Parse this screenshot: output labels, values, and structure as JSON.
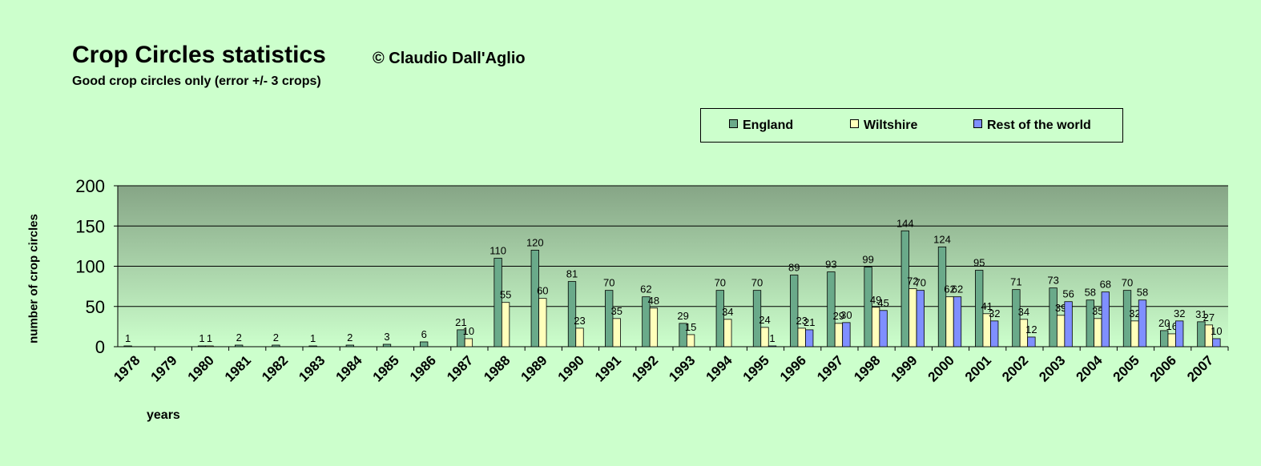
{
  "chart_data": {
    "type": "bar",
    "title": "Crop Circles statistics",
    "credit": "© Claudio Dall'Aglio",
    "subtitle": "Good crop circles only (error +/- 3 crops)",
    "xlabel": "years",
    "ylabel": "number of crop circles",
    "ylim": [
      0,
      200
    ],
    "yticks": [
      0,
      50,
      100,
      150,
      200
    ],
    "grid": true,
    "legend_position": "top-right",
    "categories": [
      "1978",
      "1979",
      "1980",
      "1981",
      "1982",
      "1983",
      "1984",
      "1985",
      "1986",
      "1987",
      "1988",
      "1989",
      "1990",
      "1991",
      "1992",
      "1993",
      "1994",
      "1995",
      "1996",
      "1997",
      "1998",
      "1999",
      "2000",
      "2001",
      "2002",
      "2003",
      "2004",
      "2005",
      "2006",
      "2007"
    ],
    "series": [
      {
        "name": "England",
        "color": "#6aaa8a",
        "values": [
          1,
          null,
          1,
          2,
          2,
          1,
          2,
          3,
          6,
          21,
          110,
          120,
          81,
          70,
          62,
          29,
          70,
          70,
          89,
          93,
          99,
          144,
          124,
          95,
          71,
          73,
          58,
          70,
          20,
          31
        ],
        "labels": [
          "1",
          "",
          "1",
          "2",
          "2",
          "1",
          "2",
          "3",
          "6",
          "21",
          "110",
          "120",
          "81",
          "70",
          "62",
          "29",
          "70",
          "70",
          "89",
          "93",
          "99",
          "144",
          "124",
          "95",
          "71",
          "73",
          "58",
          "70",
          "20",
          "31"
        ]
      },
      {
        "name": "Wiltshire",
        "color": "#ffffbb",
        "values": [
          null,
          null,
          1,
          null,
          null,
          null,
          null,
          null,
          null,
          10,
          55,
          60,
          23,
          35,
          48,
          15,
          34,
          24,
          23,
          29,
          49,
          72,
          62,
          41,
          34,
          39,
          35,
          32,
          16,
          27
        ],
        "labels": [
          "",
          "",
          "1",
          "",
          "",
          "",
          "",
          "",
          "",
          "10",
          "55",
          "60",
          "23",
          "35",
          "48",
          "15",
          "34",
          "24",
          "23",
          "29",
          "49",
          "72",
          "62",
          "41",
          "34",
          "39",
          "35",
          "32",
          "16",
          "27"
        ]
      },
      {
        "name": "Rest of the world",
        "color": "#7f8fff",
        "values": [
          null,
          null,
          null,
          null,
          null,
          null,
          null,
          null,
          null,
          null,
          null,
          null,
          null,
          null,
          null,
          null,
          null,
          1,
          21,
          30,
          45,
          70,
          62,
          32,
          12,
          56,
          68,
          58,
          32,
          10
        ],
        "labels": [
          "",
          "",
          "",
          "",
          "",
          "",
          "",
          "",
          "",
          "",
          "",
          "",
          "",
          "",
          "",
          "",
          "",
          "1",
          "21",
          "30",
          "45",
          "70",
          "62",
          "32",
          "12",
          "56",
          "68",
          "58",
          "32",
          "10"
        ]
      }
    ]
  },
  "colors": {
    "page_background": "#ccffcc",
    "plot_top": "#86a586",
    "plot_bottom": "#ccffcc"
  }
}
